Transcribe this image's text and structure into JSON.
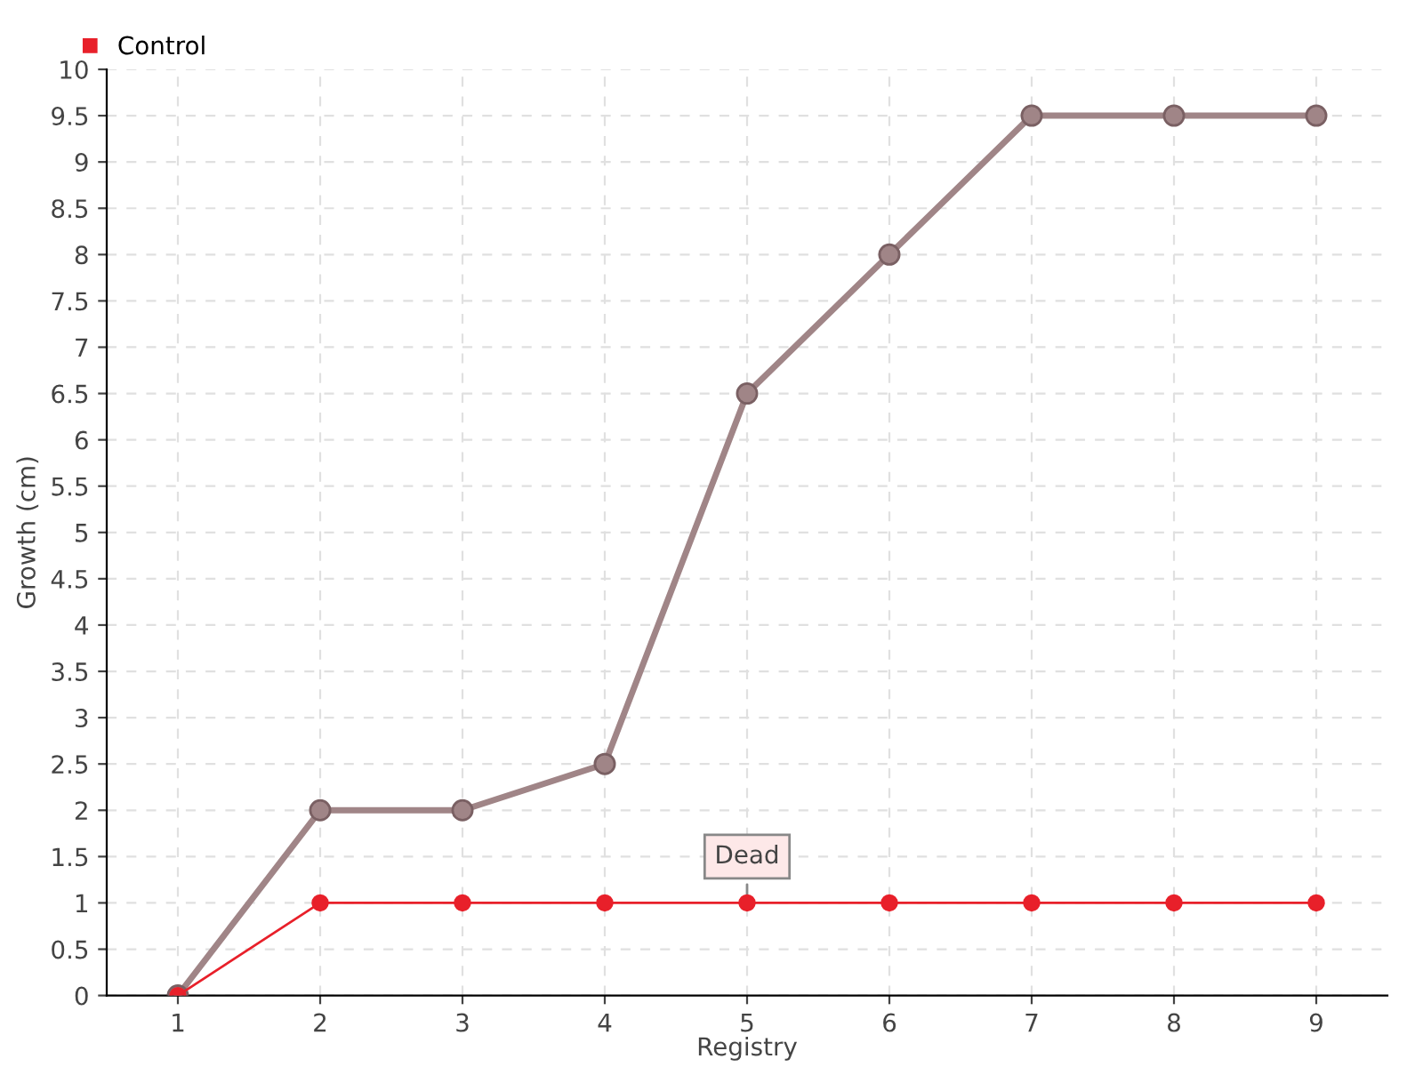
{
  "chart_data": {
    "type": "line",
    "xlabel": "Registry",
    "ylabel": "Growth (cm)",
    "x": [
      1,
      2,
      3,
      4,
      5,
      6,
      7,
      8,
      9
    ],
    "series": [
      {
        "color": "#a08587",
        "values": [
          0,
          2,
          2,
          2.5,
          6.5,
          8,
          9.5,
          9.5,
          9.5
        ]
      },
      {
        "name": "Control",
        "color": "#e8202a",
        "values": [
          0,
          1,
          1,
          1,
          1,
          1,
          1,
          1,
          1
        ]
      }
    ],
    "xlim": [
      0.5,
      9.5
    ],
    "xticks": [
      1,
      2,
      3,
      4,
      5,
      6,
      7,
      8,
      9
    ],
    "ylim": [
      0,
      10
    ],
    "yticks": [
      0,
      0.5,
      1,
      1.5,
      2,
      2.5,
      3,
      3.5,
      4,
      4.5,
      5,
      5.5,
      6,
      6.5,
      7,
      7.5,
      8,
      8.5,
      9,
      9.5,
      10
    ],
    "grid": true,
    "legend": "top left",
    "marker": "circle",
    "line_style": "solid",
    "annotations": [
      {
        "text": "Dead",
        "x": 5,
        "y": 1
      }
    ]
  }
}
